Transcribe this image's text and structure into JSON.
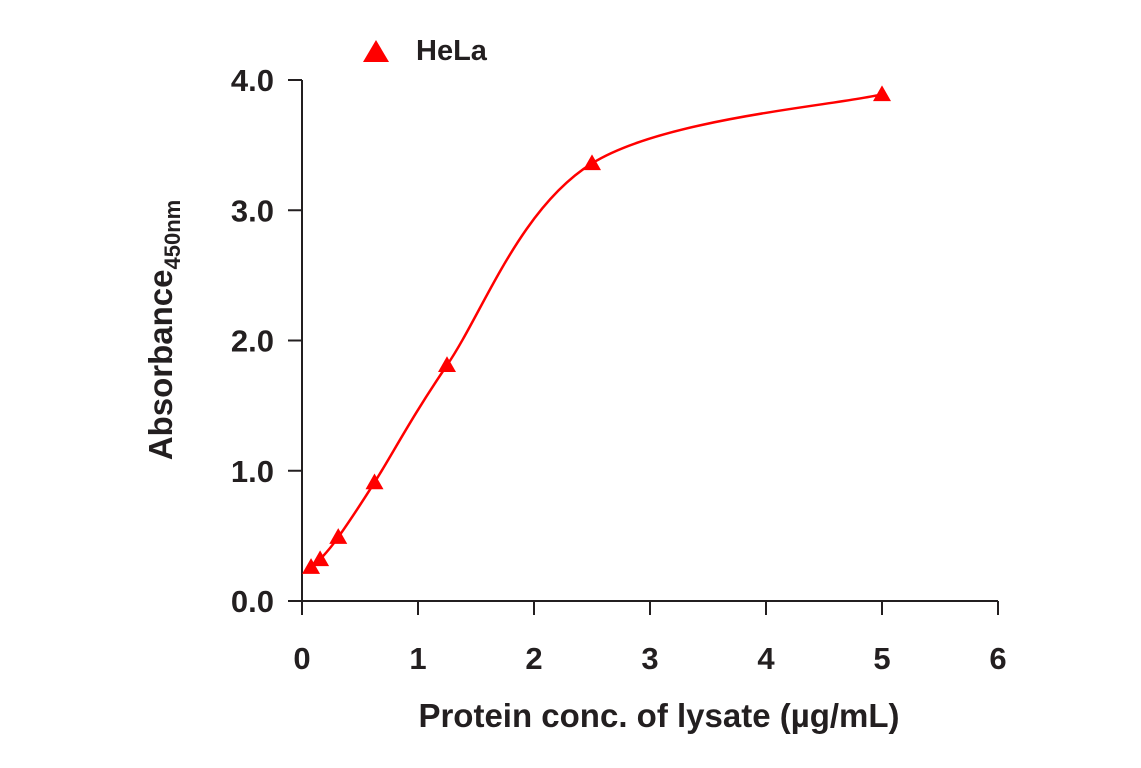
{
  "chart_data": {
    "type": "scatter",
    "title": "",
    "xlabel": "Protein conc. of lysate (µg/mL)",
    "ylabel": "Absorbance",
    "ylabel_subscript": "450nm",
    "xlim": [
      0,
      6
    ],
    "ylim": [
      0,
      4
    ],
    "x_ticks": [
      0,
      1,
      2,
      3,
      4,
      5,
      6
    ],
    "x_tick_labels": [
      "0",
      "1",
      "2",
      "3",
      "4",
      "5",
      "6"
    ],
    "y_ticks": [
      0,
      1,
      2,
      3,
      4
    ],
    "y_tick_labels": [
      "0.0",
      "1.0",
      "2.0",
      "3.0",
      "4.0"
    ],
    "grid": false,
    "legend_position": "top-left",
    "series": [
      {
        "name": "HeLa",
        "marker": "triangle",
        "color": "#ff0000",
        "x": [
          0.078,
          0.156,
          0.3125,
          0.625,
          1.25,
          2.5,
          5.0
        ],
        "y": [
          0.26,
          0.32,
          0.49,
          0.91,
          1.81,
          3.36,
          3.89
        ],
        "fit": "sigmoidal curve"
      }
    ]
  }
}
